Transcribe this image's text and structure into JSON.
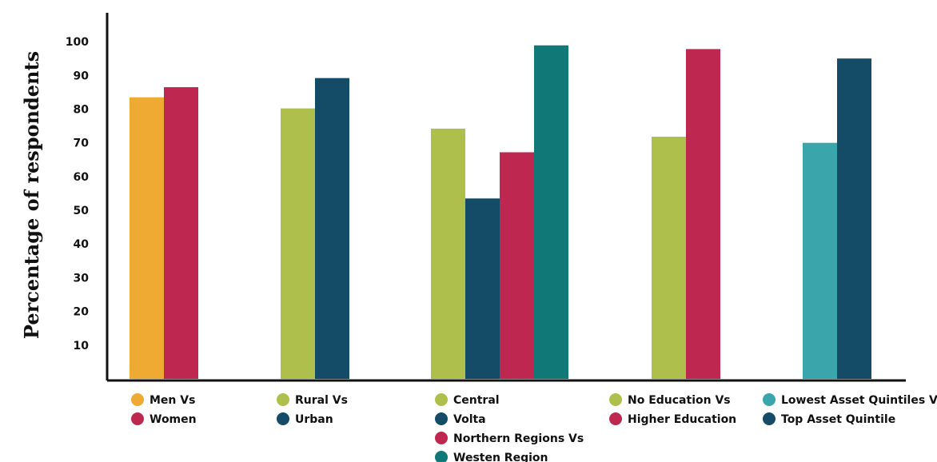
{
  "chart_data": {
    "type": "bar",
    "ylabel": "Percentage of respondents",
    "xlabel": "",
    "ylim": [
      0,
      100
    ],
    "yticks": [
      10,
      20,
      30,
      40,
      50,
      60,
      70,
      80,
      90,
      100
    ],
    "grid": false,
    "groups": [
      {
        "bars": [
          {
            "label": "Men Vs",
            "value": 83.5,
            "color": "#EFAA33"
          },
          {
            "label": "Women",
            "value": 86.5,
            "color": "#BE2850"
          }
        ]
      },
      {
        "bars": [
          {
            "label": "Rural Vs",
            "value": 80.2,
            "color": "#AEC04B"
          },
          {
            "label": "Urban",
            "value": 89.2,
            "color": "#144C67"
          }
        ]
      },
      {
        "bars": [
          {
            "label": "Central",
            "value": 74.2,
            "color": "#AEC04B"
          },
          {
            "label": "Volta",
            "value": 53.5,
            "color": "#144C67"
          },
          {
            "label": "Northern Regions Vs",
            "value": 67.2,
            "color": "#BE2850"
          },
          {
            "label": "Westen Region",
            "value": 98.9,
            "color": "#117878"
          }
        ]
      },
      {
        "bars": [
          {
            "label": "No Education Vs",
            "value": 71.8,
            "color": "#AEC04B"
          },
          {
            "label": "Higher Education",
            "value": 97.8,
            "color": "#BE2850"
          }
        ]
      },
      {
        "bars": [
          {
            "label": "Lowest Asset Quintiles Vs",
            "value": 70.0,
            "color": "#3AA6AC"
          },
          {
            "label": "Top Asset Quintile",
            "value": 95.0,
            "color": "#144C67"
          }
        ]
      }
    ]
  }
}
